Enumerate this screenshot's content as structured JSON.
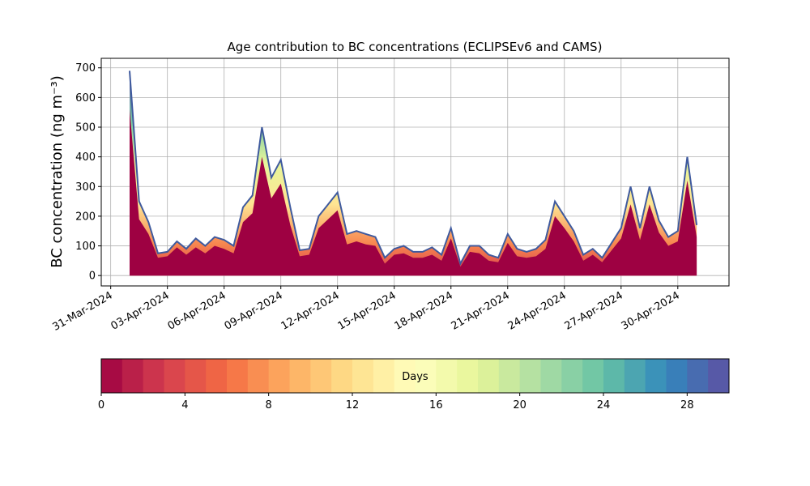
{
  "chart_data": {
    "type": "area",
    "title": "Age contribution to BC concentrations (ECLIPSEv6 and CAMS)",
    "y_label": "BC concentration (ng m⁻³)",
    "x": [
      "2024-04-01 00:00",
      "2024-04-01 12:00",
      "2024-04-02 00:00",
      "2024-04-02 12:00",
      "2024-04-03 00:00",
      "2024-04-03 12:00",
      "2024-04-04 00:00",
      "2024-04-04 12:00",
      "2024-04-05 00:00",
      "2024-04-05 12:00",
      "2024-04-06 00:00",
      "2024-04-06 12:00",
      "2024-04-07 00:00",
      "2024-04-07 12:00",
      "2024-04-08 00:00",
      "2024-04-08 12:00",
      "2024-04-09 00:00",
      "2024-04-09 12:00",
      "2024-04-10 00:00",
      "2024-04-10 12:00",
      "2024-04-11 00:00",
      "2024-04-11 12:00",
      "2024-04-12 00:00",
      "2024-04-12 12:00",
      "2024-04-13 00:00",
      "2024-04-13 12:00",
      "2024-04-14 00:00",
      "2024-04-14 12:00",
      "2024-04-15 00:00",
      "2024-04-15 12:00",
      "2024-04-16 00:00",
      "2024-04-16 12:00",
      "2024-04-17 00:00",
      "2024-04-17 12:00",
      "2024-04-18 00:00",
      "2024-04-18 12:00",
      "2024-04-19 00:00",
      "2024-04-19 12:00",
      "2024-04-20 00:00",
      "2024-04-20 12:00",
      "2024-04-21 00:00",
      "2024-04-21 12:00",
      "2024-04-22 00:00",
      "2024-04-22 12:00",
      "2024-04-23 00:00",
      "2024-04-23 12:00",
      "2024-04-24 00:00",
      "2024-04-24 12:00",
      "2024-04-25 00:00",
      "2024-04-25 12:00",
      "2024-04-26 00:00",
      "2024-04-26 12:00",
      "2024-04-27 00:00",
      "2024-04-27 12:00",
      "2024-04-28 00:00",
      "2024-04-28 12:00",
      "2024-04-29 00:00",
      "2024-04-29 12:00",
      "2024-04-30 00:00",
      "2024-04-30 12:00",
      "2024-05-01 00:00"
    ],
    "series": [
      {
        "color": "#9e0142",
        "values": [
          560,
          190,
          140,
          60,
          65,
          95,
          70,
          95,
          75,
          100,
          90,
          75,
          180,
          210,
          400,
          260,
          310,
          170,
          65,
          70,
          160,
          190,
          220,
          105,
          115,
          105,
          100,
          40,
          70,
          75,
          60,
          60,
          70,
          50,
          125,
          30,
          80,
          75,
          50,
          45,
          110,
          65,
          60,
          65,
          90,
          200,
          160,
          115,
          50,
          70,
          45,
          85,
          125,
          240,
          120,
          240,
          145,
          100,
          115,
          320,
          130
        ]
      },
      {
        "color": "#3f5a9e",
        "values": [
          690,
          250,
          180,
          75,
          80,
          115,
          90,
          125,
          100,
          130,
          120,
          100,
          230,
          270,
          500,
          330,
          390,
          230,
          85,
          90,
          200,
          240,
          280,
          140,
          150,
          140,
          130,
          60,
          90,
          100,
          80,
          80,
          95,
          70,
          160,
          40,
          100,
          100,
          70,
          60,
          140,
          90,
          80,
          90,
          120,
          250,
          200,
          150,
          70,
          90,
          60,
          110,
          160,
          300,
          160,
          300,
          185,
          130,
          150,
          400,
          170
        ]
      }
    ],
    "xlim": [
      "2024-03-30 12:00",
      "2024-05-02 17:00"
    ],
    "xticks": [
      {
        "value": "2024-03-31",
        "label": "31-Mar-2024"
      },
      {
        "value": "2024-04-03",
        "label": "03-Apr-2024"
      },
      {
        "value": "2024-04-06",
        "label": "06-Apr-2024"
      },
      {
        "value": "2024-04-09",
        "label": "09-Apr-2024"
      },
      {
        "value": "2024-04-12",
        "label": "12-Apr-2024"
      },
      {
        "value": "2024-04-15",
        "label": "15-Apr-2024"
      },
      {
        "value": "2024-04-18",
        "label": "18-Apr-2024"
      },
      {
        "value": "2024-04-21",
        "label": "21-Apr-2024"
      },
      {
        "value": "2024-04-24",
        "label": "24-Apr-2024"
      },
      {
        "value": "2024-04-27",
        "label": "27-Apr-2024"
      },
      {
        "value": "2024-04-30",
        "label": "30-Apr-2024"
      }
    ],
    "ylim": [
      -35,
      732
    ],
    "yticks": [
      0,
      100,
      200,
      300,
      400,
      500,
      600,
      700
    ],
    "grid": true,
    "colorbar": {
      "label": "Days",
      "lim": [
        0,
        30
      ],
      "ticks": [
        0,
        4,
        8,
        12,
        16,
        20,
        24,
        28
      ],
      "colormap": [
        "#9e0142",
        "#d53e4f",
        "#f46d43",
        "#fdae61",
        "#fee08b",
        "#ffffbf",
        "#e6f598",
        "#abdda4",
        "#66c2a5",
        "#3288bd",
        "#5e4fa2"
      ]
    }
  }
}
